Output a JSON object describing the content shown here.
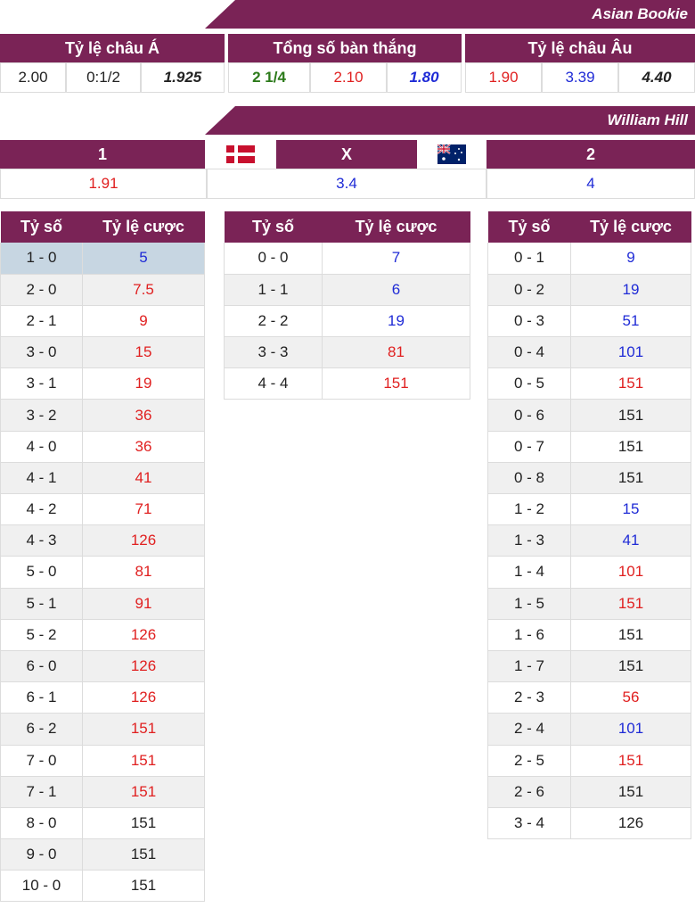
{
  "asian_bookie": {
    "banner": "Asian Bookie",
    "headers": [
      "Tỷ lệ châu Á",
      "Tổng số bàn thắng",
      "Tỷ lệ châu Âu"
    ],
    "handicap": [
      "2.00",
      "0:1/2",
      "1.925"
    ],
    "totals": [
      "2 1/4",
      "2.10",
      "1.80"
    ],
    "european": [
      "1.90",
      "3.39",
      "4.40"
    ]
  },
  "william_hill": {
    "banner": "William Hill",
    "home_label": "1",
    "draw_label": "X",
    "away_label": "2",
    "home_odds": "1.91",
    "draw_odds": "3.4",
    "away_odds": "4",
    "home_flag_icon": "denmark-flag-icon",
    "away_flag_icon": "australia-flag-icon"
  },
  "score_tables": {
    "col_score": "Tỷ số",
    "col_odds": "Tỷ lệ cược",
    "home_wins": [
      {
        "score": "1 - 0",
        "odds": "5",
        "color": "blue",
        "highlight": true
      },
      {
        "score": "2 - 0",
        "odds": "7.5",
        "color": "red"
      },
      {
        "score": "2 - 1",
        "odds": "9",
        "color": "red"
      },
      {
        "score": "3 - 0",
        "odds": "15",
        "color": "red"
      },
      {
        "score": "3 - 1",
        "odds": "19",
        "color": "red"
      },
      {
        "score": "3 - 2",
        "odds": "36",
        "color": "red"
      },
      {
        "score": "4 - 0",
        "odds": "36",
        "color": "red"
      },
      {
        "score": "4 - 1",
        "odds": "41",
        "color": "red"
      },
      {
        "score": "4 - 2",
        "odds": "71",
        "color": "red"
      },
      {
        "score": "4 - 3",
        "odds": "126",
        "color": "red"
      },
      {
        "score": "5 - 0",
        "odds": "81",
        "color": "red"
      },
      {
        "score": "5 - 1",
        "odds": "91",
        "color": "red"
      },
      {
        "score": "5 - 2",
        "odds": "126",
        "color": "red"
      },
      {
        "score": "6 - 0",
        "odds": "126",
        "color": "red"
      },
      {
        "score": "6 - 1",
        "odds": "126",
        "color": "red"
      },
      {
        "score": "6 - 2",
        "odds": "151",
        "color": "red"
      },
      {
        "score": "7 - 0",
        "odds": "151",
        "color": "red"
      },
      {
        "score": "7 - 1",
        "odds": "151",
        "color": "red"
      },
      {
        "score": "8 - 0",
        "odds": "151",
        "color": "dark"
      },
      {
        "score": "9 - 0",
        "odds": "151",
        "color": "dark"
      },
      {
        "score": "10 - 0",
        "odds": "151",
        "color": "dark"
      }
    ],
    "draws": [
      {
        "score": "0 - 0",
        "odds": "7",
        "color": "blue"
      },
      {
        "score": "1 - 1",
        "odds": "6",
        "color": "blue"
      },
      {
        "score": "2 - 2",
        "odds": "19",
        "color": "blue"
      },
      {
        "score": "3 - 3",
        "odds": "81",
        "color": "red"
      },
      {
        "score": "4 - 4",
        "odds": "151",
        "color": "red"
      }
    ],
    "away_wins": [
      {
        "score": "0 - 1",
        "odds": "9",
        "color": "blue"
      },
      {
        "score": "0 - 2",
        "odds": "19",
        "color": "blue"
      },
      {
        "score": "0 - 3",
        "odds": "51",
        "color": "blue"
      },
      {
        "score": "0 - 4",
        "odds": "101",
        "color": "blue"
      },
      {
        "score": "0 - 5",
        "odds": "151",
        "color": "red"
      },
      {
        "score": "0 - 6",
        "odds": "151",
        "color": "dark"
      },
      {
        "score": "0 - 7",
        "odds": "151",
        "color": "dark"
      },
      {
        "score": "0 - 8",
        "odds": "151",
        "color": "dark"
      },
      {
        "score": "1 - 2",
        "odds": "15",
        "color": "blue"
      },
      {
        "score": "1 - 3",
        "odds": "41",
        "color": "blue"
      },
      {
        "score": "1 - 4",
        "odds": "101",
        "color": "red"
      },
      {
        "score": "1 - 5",
        "odds": "151",
        "color": "red"
      },
      {
        "score": "1 - 6",
        "odds": "151",
        "color": "dark"
      },
      {
        "score": "1 - 7",
        "odds": "151",
        "color": "dark"
      },
      {
        "score": "2 - 3",
        "odds": "56",
        "color": "red"
      },
      {
        "score": "2 - 4",
        "odds": "101",
        "color": "blue"
      },
      {
        "score": "2 - 5",
        "odds": "151",
        "color": "red"
      },
      {
        "score": "2 - 6",
        "odds": "151",
        "color": "dark"
      },
      {
        "score": "3 - 4",
        "odds": "126",
        "color": "dark"
      }
    ]
  },
  "colors": {
    "header_bg": "#7a2356",
    "red": "#e02020",
    "blue": "#1f2bd6",
    "green": "#2c7a1a",
    "highlight": "#c7d6e2"
  }
}
